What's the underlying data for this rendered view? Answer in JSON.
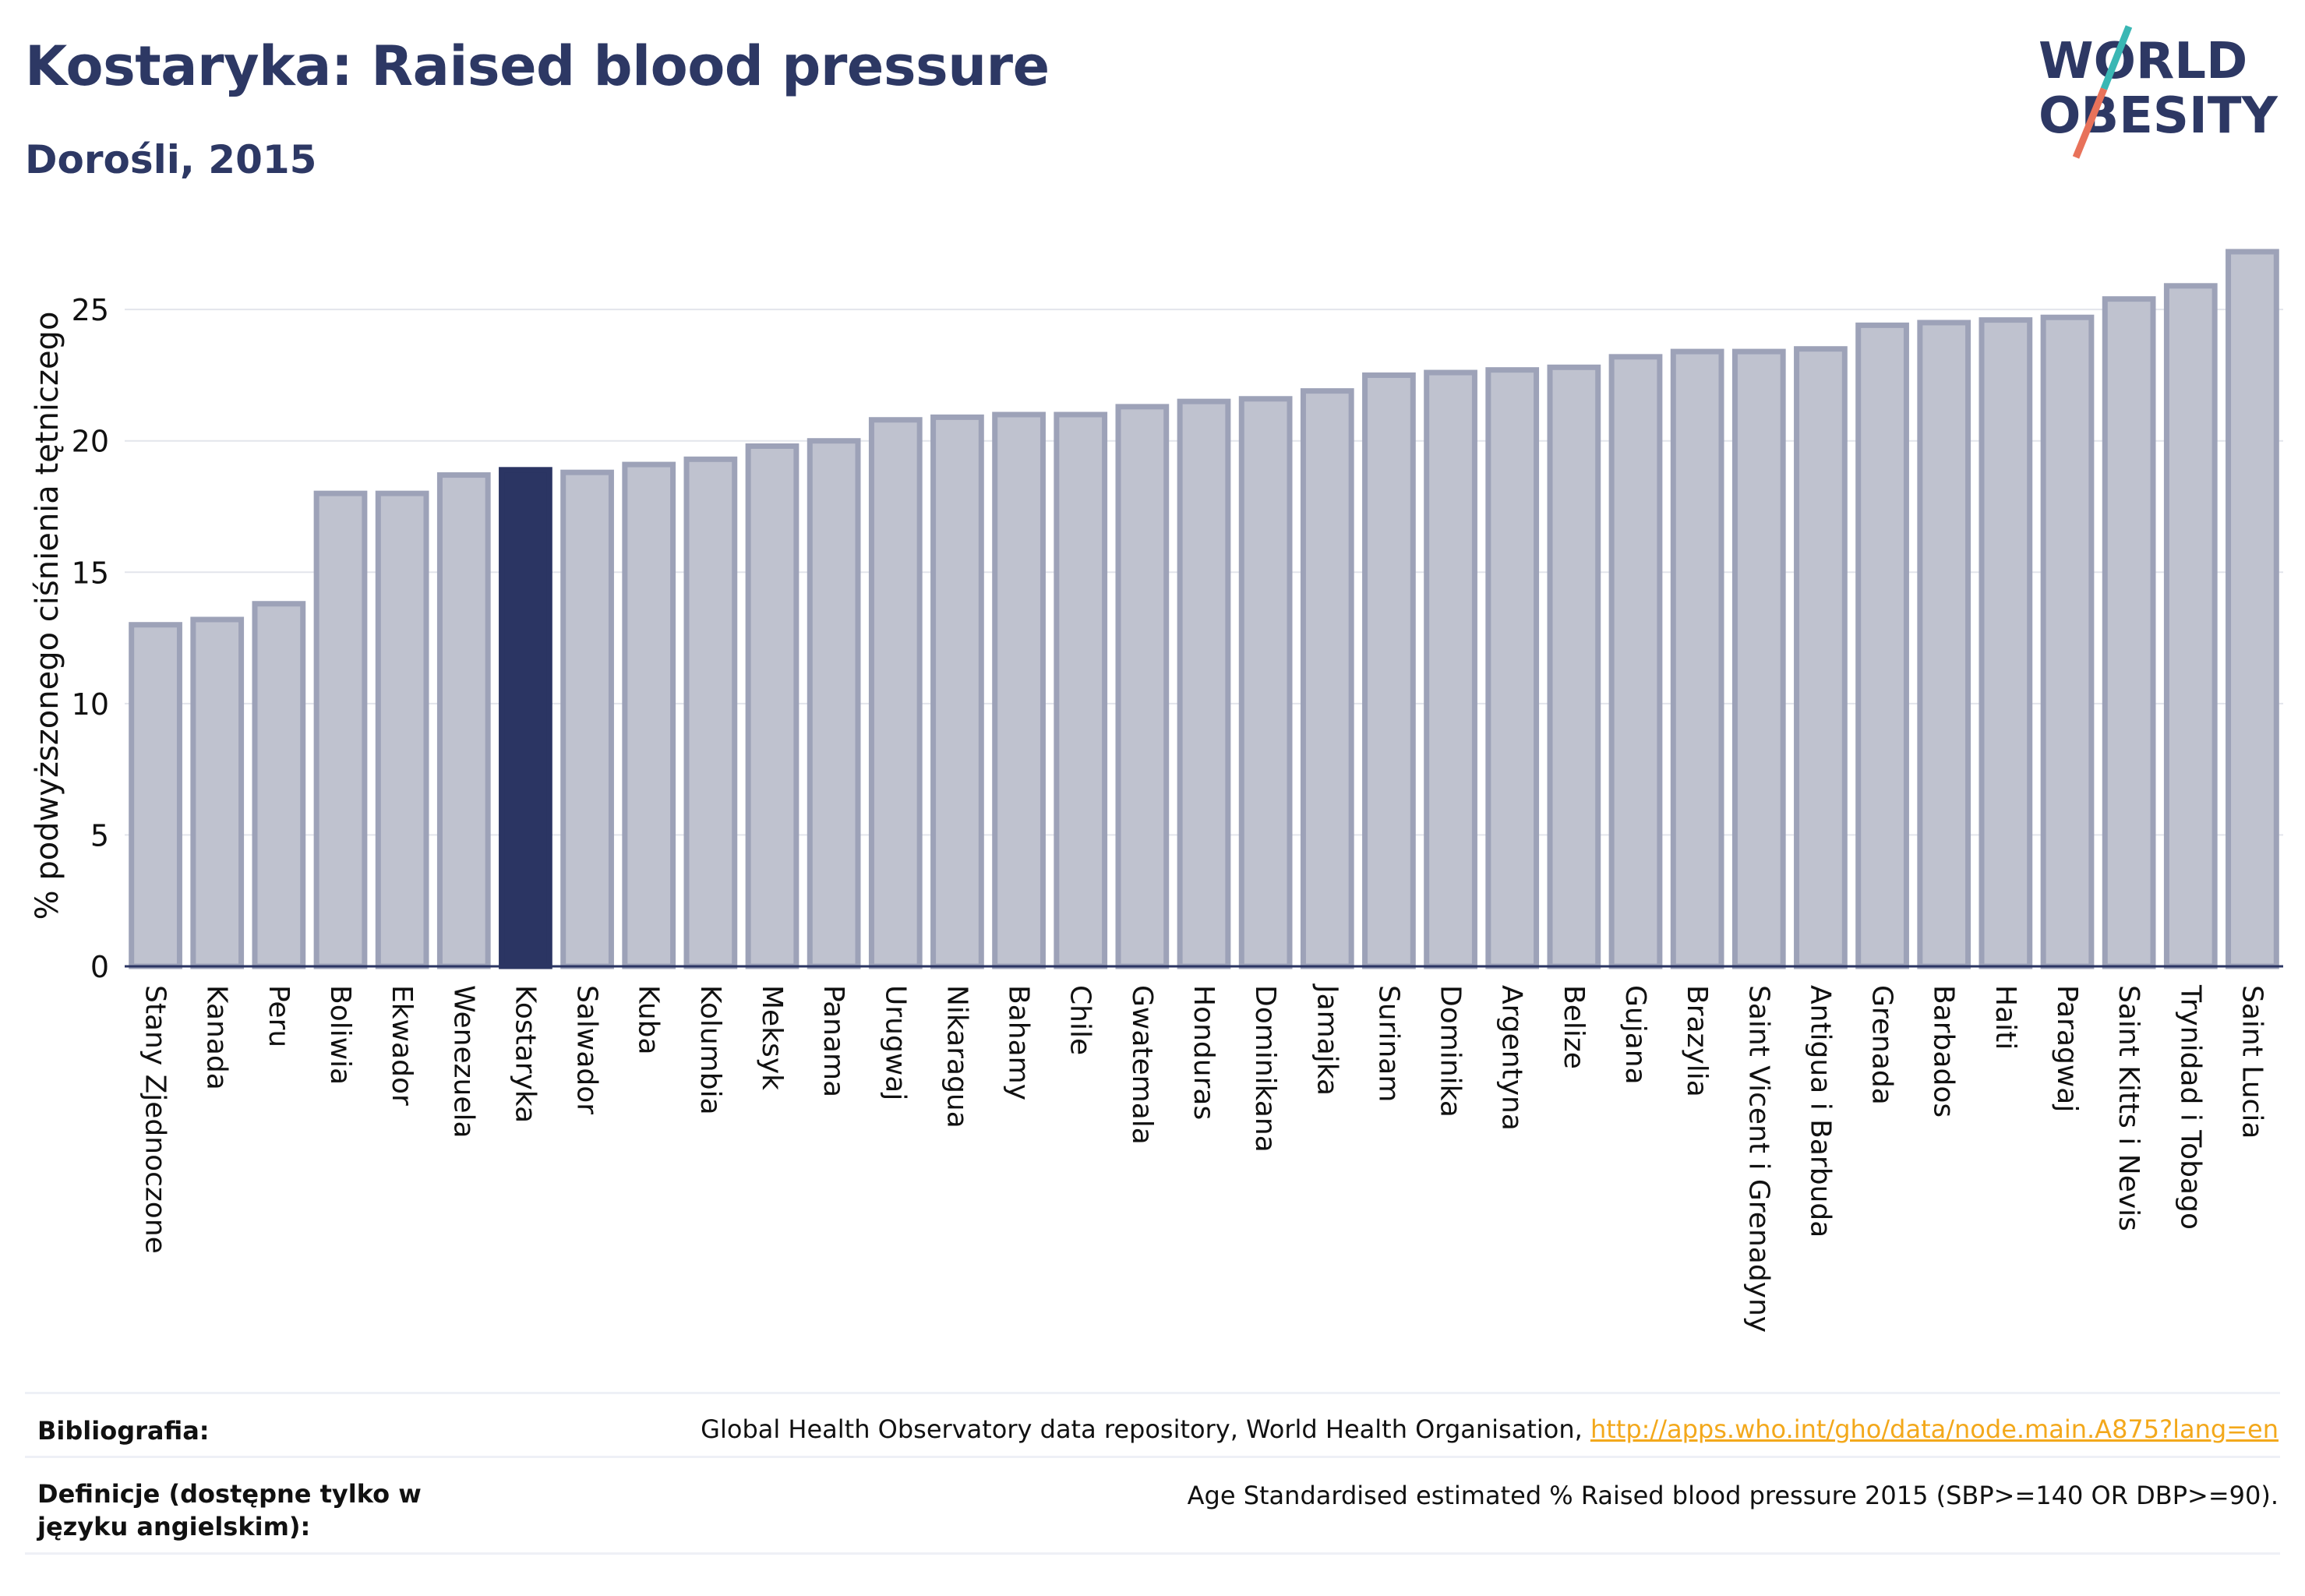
{
  "header": {
    "title": "Kostaryka: Raised blood pressure",
    "subtitle": "Dorośli, 2015"
  },
  "logo": {
    "line1": "WORLD",
    "line2": "OBESITY",
    "text_color": "#2d3864",
    "accent_teal": "#3ab7b4",
    "accent_coral": "#e8725a"
  },
  "chart_data": {
    "type": "bar",
    "ylabel": "% podwyższonego ciśnienia tętniczego",
    "xlabel": "",
    "ylim": [
      0,
      28
    ],
    "yticks": [
      0,
      5,
      10,
      15,
      20,
      25
    ],
    "grid": true,
    "highlight": "Kostaryka",
    "colors": {
      "bar": "#bfc2cf",
      "bar_border": "#9da2b8",
      "highlight": "#2b3563",
      "grid": "#e3e5ec",
      "axis": "#2b3563"
    },
    "categories": [
      "Stany Zjednoczone",
      "Kanada",
      "Peru",
      "Boliwia",
      "Ekwador",
      "Wenezuela",
      "Kostaryka",
      "Salwador",
      "Kuba",
      "Kolumbia",
      "Meksyk",
      "Panama",
      "Urugwaj",
      "Nikaragua",
      "Bahamy",
      "Chile",
      "Gwatemala",
      "Honduras",
      "Dominikana",
      "Jamajka",
      "Surinam",
      "Dominika",
      "Argentyna",
      "Belize",
      "Gujana",
      "Brazylia",
      "Saint Vicent i Grenadyny",
      "Antigua i Barbuda",
      "Grenada",
      "Barbados",
      "Haiti",
      "Paragwaj",
      "Saint Kitts i Nevis",
      "Trynidad i Tobago",
      "Saint Lucia"
    ],
    "values": [
      13.0,
      13.2,
      13.8,
      18.0,
      18.0,
      18.7,
      18.9,
      18.8,
      19.1,
      19.3,
      19.8,
      20.0,
      20.8,
      20.9,
      21.0,
      21.0,
      21.3,
      21.5,
      21.6,
      21.9,
      22.5,
      22.6,
      22.7,
      22.8,
      23.2,
      23.4,
      23.4,
      23.5,
      24.4,
      24.5,
      24.6,
      24.7,
      25.4,
      25.9,
      27.2
    ]
  },
  "footer": {
    "bibliography_label": "Bibliografia:",
    "bibliography_text": "Global Health Observatory data repository, World Health Organisation, ",
    "bibliography_link": "http://apps.who.int/gho/data/node.main.A875?lang=en",
    "definitions_label": "Definicje (dostępne tylko w języku angielskim):",
    "definitions_text": "Age Standardised estimated % Raised blood pressure 2015 (SBP>=140 OR DBP>=90)."
  }
}
